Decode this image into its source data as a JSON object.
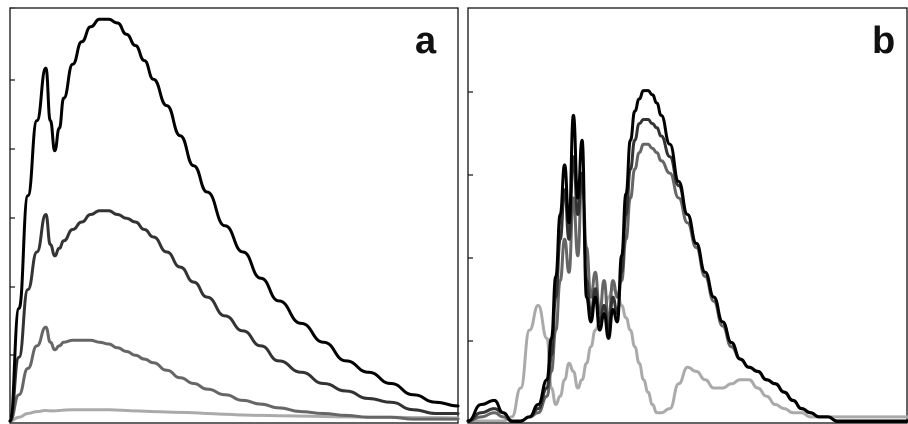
{
  "figure": {
    "panels": [
      "a",
      "b"
    ]
  },
  "chart_data": [
    {
      "type": "line",
      "panel_label": "a",
      "title": "",
      "xlabel": "",
      "ylabel": "",
      "xlim": [
        0,
        100
      ],
      "ylim": [
        0,
        110
      ],
      "grid": false,
      "legend": "none",
      "x": [
        0,
        2,
        4,
        6,
        8,
        9,
        10,
        11,
        12,
        14,
        16,
        18,
        20,
        22,
        24,
        26,
        28,
        30,
        32,
        35,
        38,
        41,
        44,
        48,
        52,
        56,
        60,
        65,
        70,
        75,
        80,
        85,
        90,
        95,
        100
      ],
      "series": [
        {
          "color": "#000000",
          "values": [
            0,
            30,
            60,
            80,
            94,
            80,
            72,
            78,
            86,
            95,
            101,
            105,
            107,
            107,
            106,
            103,
            100,
            96,
            91,
            84,
            76,
            68,
            61,
            52,
            45,
            38,
            32,
            26,
            21,
            16,
            13,
            10,
            7,
            5,
            4
          ]
        },
        {
          "color": "#333333",
          "values": [
            0,
            17,
            35,
            45,
            55,
            47,
            44,
            46,
            48,
            51,
            53,
            55,
            56,
            56,
            55,
            54,
            53,
            51,
            49,
            45,
            41,
            37,
            33,
            28,
            24,
            20,
            16,
            13,
            10,
            8,
            6,
            5,
            3,
            2,
            2
          ]
        },
        {
          "color": "#666666",
          "values": [
            0,
            7,
            14,
            20,
            25,
            21,
            19,
            20,
            21,
            21.5,
            21.5,
            21.5,
            21,
            20.5,
            19.5,
            18.5,
            17.5,
            16.5,
            15.5,
            13.5,
            11.5,
            10,
            8.5,
            7,
            5.5,
            4.5,
            3.5,
            2.5,
            2,
            1.5,
            1,
            1,
            0.5,
            0.5,
            0.5
          ]
        },
        {
          "color": "#aaaaaa",
          "values": [
            0,
            1,
            2,
            2.5,
            2.8,
            2.7,
            2.7,
            2.8,
            2.9,
            3,
            3,
            3,
            3,
            3,
            2.9,
            2.8,
            2.7,
            2.6,
            2.5,
            2.4,
            2.3,
            2.2,
            2,
            1.8,
            1.6,
            1.5,
            1.4,
            1.3,
            1.2,
            1.1,
            1,
            1,
            0.9,
            0.9,
            0.8
          ]
        }
      ]
    },
    {
      "type": "line",
      "panel_label": "b",
      "title": "",
      "xlabel": "",
      "ylabel": "",
      "xlim": [
        0,
        100
      ],
      "ylim": [
        0,
        100
      ],
      "grid": false,
      "legend": "none",
      "x": [
        0,
        3,
        6,
        8,
        10,
        12,
        14,
        16,
        18,
        19,
        20,
        21,
        22,
        23,
        24,
        25,
        26,
        27,
        28,
        29,
        30,
        31,
        32,
        33,
        34,
        35,
        36,
        37,
        38,
        39,
        40,
        41,
        42,
        43,
        44,
        46,
        48,
        50,
        52,
        54,
        56,
        58,
        60,
        62,
        64,
        66,
        68,
        70,
        72,
        74,
        76,
        78,
        80,
        82,
        84,
        86,
        88,
        90,
        92,
        94,
        96,
        98,
        100
      ],
      "series": [
        {
          "color": "#000000",
          "values": [
            0,
            4,
            5,
            2,
            0,
            0,
            1,
            4,
            10,
            20,
            35,
            50,
            62,
            48,
            74,
            54,
            68,
            30,
            24,
            30,
            22,
            26,
            20,
            27,
            24,
            40,
            55,
            68,
            75,
            78,
            80,
            80,
            79,
            77,
            74,
            67,
            58,
            50,
            43,
            36,
            30,
            24,
            19,
            15,
            13,
            12,
            10,
            9,
            7,
            5,
            3,
            2,
            1,
            1,
            0,
            0,
            0,
            0,
            0,
            0,
            0,
            0,
            0
          ]
        },
        {
          "color": "#333333",
          "values": [
            0,
            2,
            3,
            2,
            0,
            0,
            1,
            3,
            8,
            16,
            30,
            44,
            56,
            44,
            64,
            50,
            60,
            34,
            26,
            32,
            24,
            28,
            22,
            30,
            26,
            36,
            50,
            61,
            68,
            72,
            73,
            73,
            72,
            71,
            69,
            64,
            57,
            50,
            43,
            36,
            30,
            24,
            19,
            15,
            13,
            12,
            10,
            9,
            7,
            5,
            3,
            2,
            1,
            1,
            0,
            0,
            0,
            0,
            0,
            0,
            0,
            0,
            0
          ]
        },
        {
          "color": "#666666",
          "values": [
            0,
            1,
            2,
            1,
            0,
            0,
            1,
            2,
            6,
            12,
            22,
            34,
            44,
            36,
            54,
            40,
            60,
            42,
            30,
            36,
            26,
            34,
            24,
            34,
            30,
            34,
            44,
            54,
            61,
            65,
            67,
            67,
            66,
            65,
            63,
            60,
            54,
            48,
            42,
            35,
            29,
            23,
            18,
            15,
            13,
            12,
            10,
            9,
            7,
            5,
            3,
            2,
            1,
            1,
            0,
            0,
            0,
            0,
            0,
            0,
            0,
            0,
            0
          ]
        },
        {
          "color": "#aaaaaa",
          "values": [
            0,
            0,
            0,
            0,
            1,
            8,
            22,
            28,
            20,
            8,
            4,
            6,
            10,
            14,
            12,
            8,
            10,
            14,
            18,
            22,
            24,
            26,
            30,
            32,
            31,
            28,
            25,
            22,
            18,
            14,
            10,
            7,
            4,
            2,
            2,
            3,
            9,
            13,
            12,
            10,
            8,
            8,
            9,
            10,
            10,
            8,
            6,
            4,
            3,
            2,
            2,
            1,
            1,
            1,
            1,
            1,
            1,
            1,
            1,
            1,
            1,
            1,
            1
          ]
        }
      ]
    }
  ]
}
